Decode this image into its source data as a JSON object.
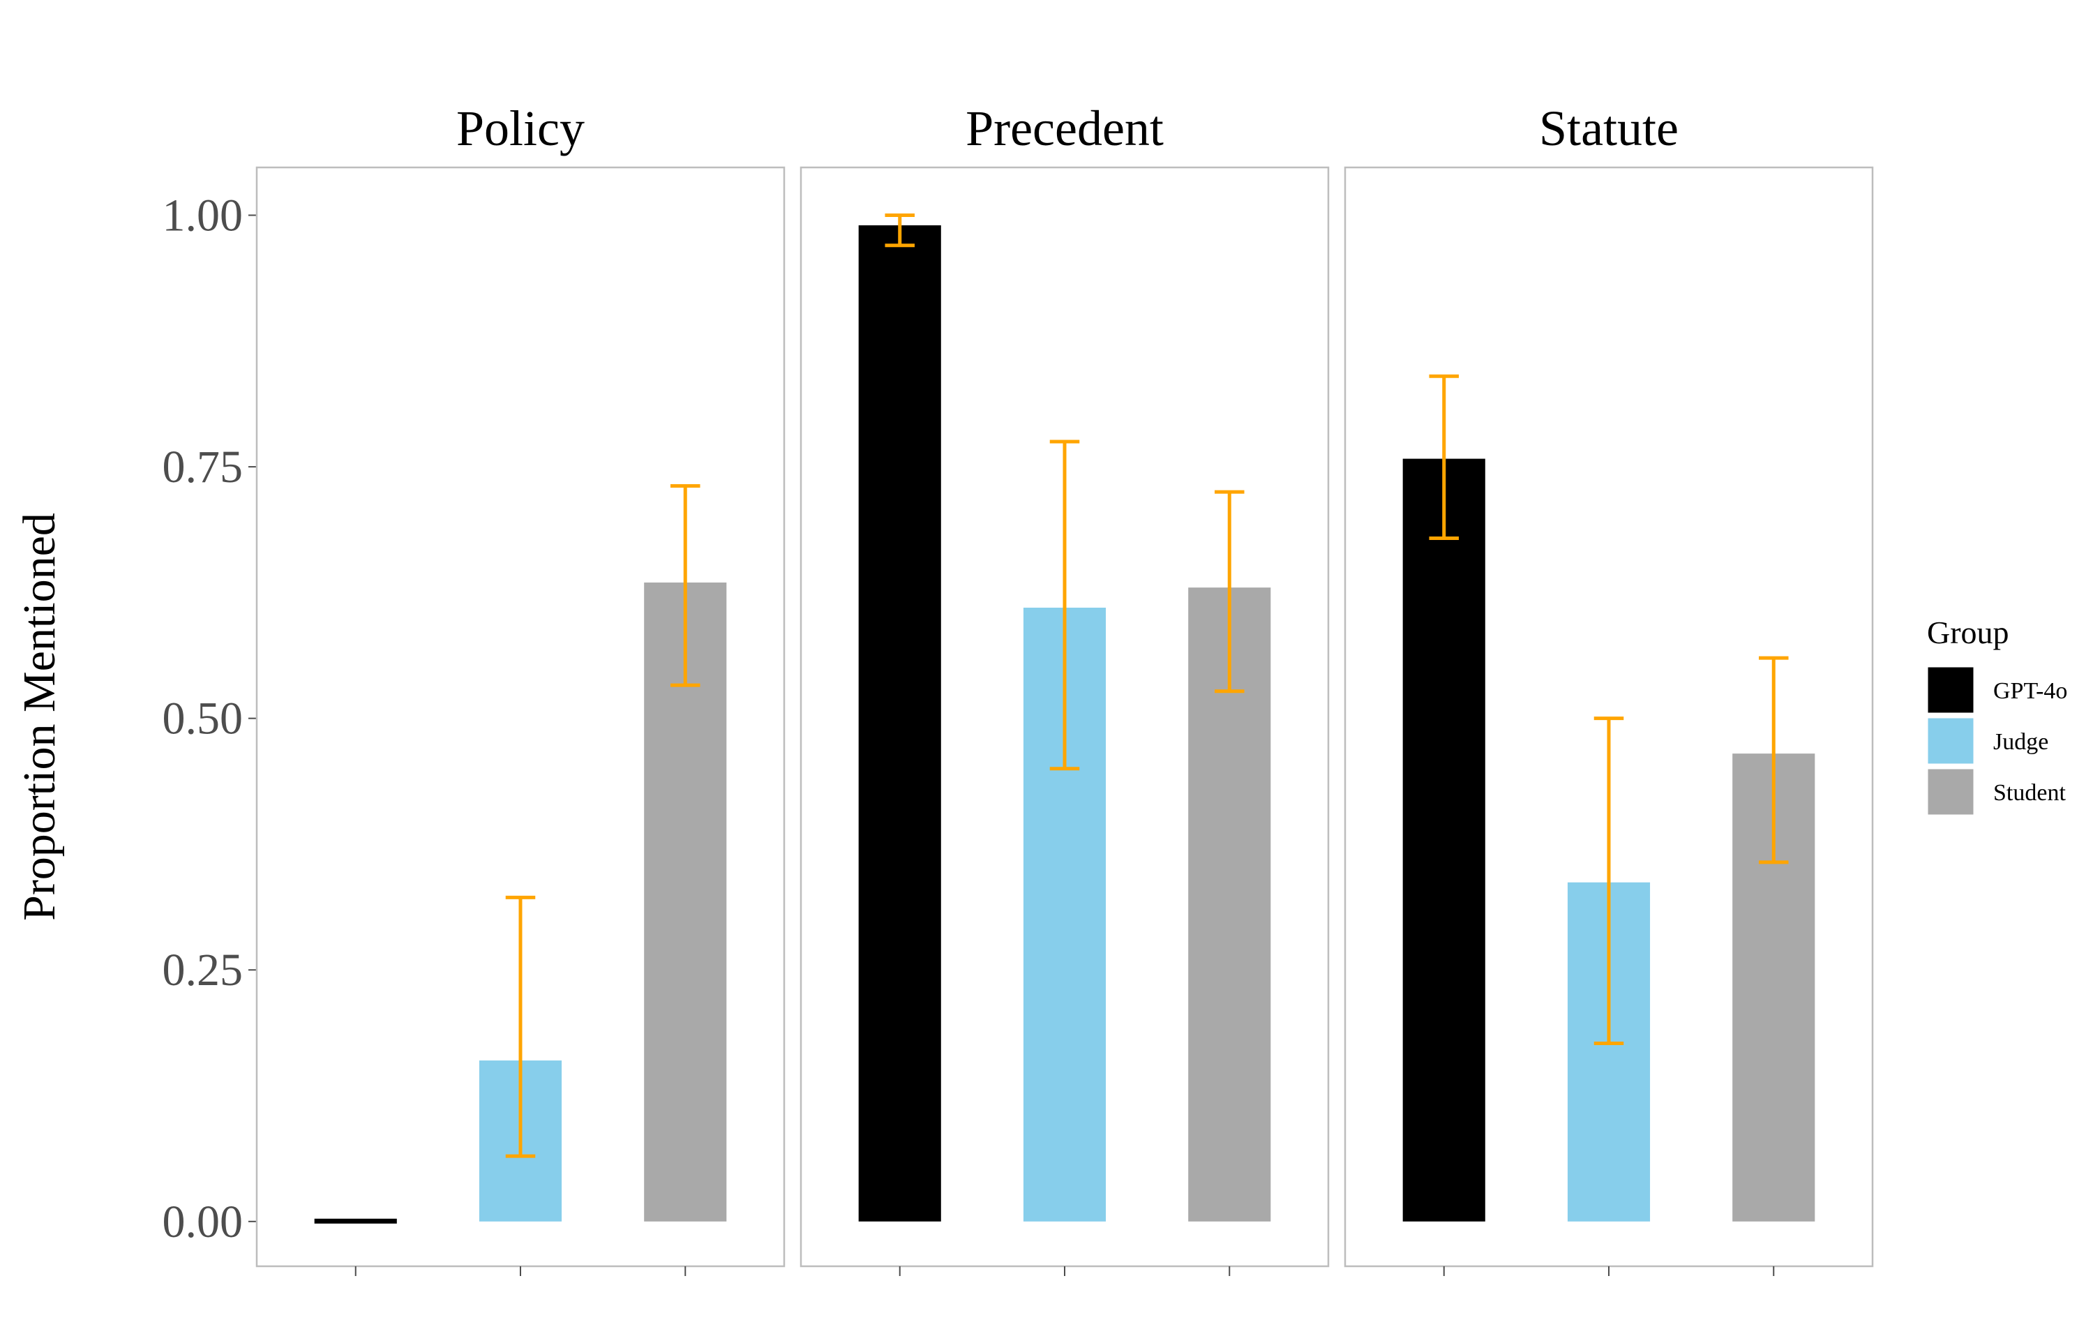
{
  "chart_data": {
    "type": "bar",
    "ylabel": "Proportion Mentioned",
    "xlabel": "",
    "ylim": [
      -0.0445,
      1.0475
    ],
    "yticks": [
      "0.00",
      "0.25",
      "0.50",
      "0.75",
      "1.00"
    ],
    "grid": false,
    "legend": {
      "title": "Group",
      "placement": "right",
      "items": [
        {
          "name": "GPT-4o",
          "color": "#000000"
        },
        {
          "name": "Judge",
          "color": "#87CEEB"
        },
        {
          "name": "Student",
          "color": "#A9A9A9"
        }
      ]
    },
    "error_bar_color": "#FFA500",
    "categories": [
      "GPT-4o",
      "Judge",
      "Student"
    ],
    "facets": [
      {
        "title": "Policy",
        "values": [
          0.0,
          0.16,
          0.635
        ],
        "err_low": [
          0.0,
          0.065,
          0.533
        ],
        "err_high": [
          0.0,
          0.322,
          0.731
        ]
      },
      {
        "title": "Precedent",
        "values": [
          0.99,
          0.61,
          0.63
        ],
        "err_low": [
          0.97,
          0.45,
          0.527
        ],
        "err_high": [
          1.0,
          0.775,
          0.725
        ]
      },
      {
        "title": "Statute",
        "values": [
          0.758,
          0.337,
          0.465
        ],
        "err_low": [
          0.679,
          0.177,
          0.357
        ],
        "err_high": [
          0.84,
          0.5,
          0.56
        ]
      }
    ]
  }
}
